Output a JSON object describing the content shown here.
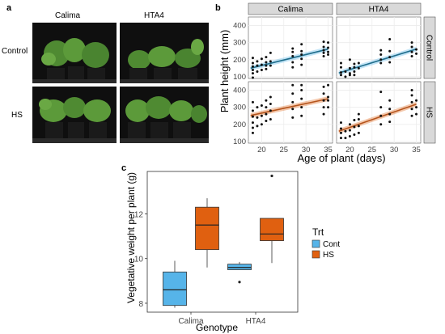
{
  "panel_a": {
    "letter": "a",
    "col_labels": [
      "Calima",
      "HTA4"
    ],
    "row_labels": [
      "Control",
      "HS"
    ]
  },
  "panel_b": {
    "letter": "b",
    "ylabel": "Plant height (mm)",
    "xlabel": "Age of plant (days)",
    "facet_cols": [
      "Calima",
      "HTA4"
    ],
    "facet_rows": [
      "Control",
      "HS"
    ]
  },
  "panel_c": {
    "letter": "c",
    "ylabel": "Vegetative weight per plant (g)",
    "xlabel": "Genotype",
    "legend_title": "Trt",
    "legend_items": [
      "Control",
      "HS"
    ]
  },
  "colors": {
    "control": "#56b4e9",
    "hs": "#e06010",
    "line_control": "#1f6e8c",
    "line_hs": "#b5541c",
    "strip": "#d9d9d9",
    "grid": "#ececec"
  },
  "chart_data": [
    {
      "type": "scatter",
      "title": "",
      "xlabel": "Age of plant (days)",
      "ylabel": "Plant height (mm)",
      "xlim": [
        17,
        36
      ],
      "ylim": [
        90,
        450
      ],
      "x_ticks": [
        20,
        25,
        30,
        35
      ],
      "y_ticks": [
        100,
        200,
        300,
        400
      ],
      "grid": true,
      "facets": [
        {
          "row": "Control",
          "col": "Calima",
          "fit": [
            [
              17.5,
              150
            ],
            [
              35,
              262
            ]
          ],
          "points": [
            [
              18,
              95
            ],
            [
              18,
              120
            ],
            [
              18,
              140
            ],
            [
              18,
              160
            ],
            [
              18,
              180
            ],
            [
              18,
              210
            ],
            [
              19,
              130
            ],
            [
              19,
              165
            ],
            [
              19,
              190
            ],
            [
              20,
              140
            ],
            [
              20,
              170
            ],
            [
              20,
              205
            ],
            [
              21,
              145
            ],
            [
              21,
              165
            ],
            [
              21,
              185
            ],
            [
              21,
              215
            ],
            [
              22,
              165
            ],
            [
              22,
              190
            ],
            [
              22,
              240
            ],
            [
              27,
              155
            ],
            [
              27,
              185
            ],
            [
              27,
              220
            ],
            [
              27,
              245
            ],
            [
              27,
              265
            ],
            [
              29,
              170
            ],
            [
              29,
              205
            ],
            [
              29,
              230
            ],
            [
              29,
              250
            ],
            [
              29,
              290
            ],
            [
              34,
              220
            ],
            [
              34,
              240
            ],
            [
              34,
              255
            ],
            [
              34,
              275
            ],
            [
              34,
              305
            ],
            [
              35,
              230
            ],
            [
              35,
              245
            ],
            [
              35,
              270
            ],
            [
              35,
              300
            ]
          ]
        },
        {
          "row": "Control",
          "col": "HTA4",
          "fit": [
            [
              17.5,
              122
            ],
            [
              35,
              262
            ]
          ],
          "points": [
            [
              18,
              110
            ],
            [
              18,
              125
            ],
            [
              18,
              155
            ],
            [
              18,
              180
            ],
            [
              19,
              100
            ],
            [
              19,
              130
            ],
            [
              20,
              110
            ],
            [
              20,
              120
            ],
            [
              20,
              150
            ],
            [
              20,
              200
            ],
            [
              21,
              110
            ],
            [
              21,
              130
            ],
            [
              21,
              155
            ],
            [
              21,
              175
            ],
            [
              22,
              150
            ],
            [
              22,
              180
            ],
            [
              27,
              180
            ],
            [
              27,
              200
            ],
            [
              27,
              230
            ],
            [
              27,
              255
            ],
            [
              29,
              185
            ],
            [
              29,
              215
            ],
            [
              29,
              250
            ],
            [
              29,
              320
            ],
            [
              34,
              220
            ],
            [
              34,
              245
            ],
            [
              34,
              275
            ],
            [
              34,
              300
            ],
            [
              35,
              235
            ],
            [
              35,
              260
            ]
          ]
        },
        {
          "row": "HS",
          "col": "Calima",
          "fit": [
            [
              17.5,
              252
            ],
            [
              35,
              350
            ]
          ],
          "points": [
            [
              18,
              150
            ],
            [
              18,
              180
            ],
            [
              18,
              210
            ],
            [
              18,
              245
            ],
            [
              18,
              280
            ],
            [
              18,
              330
            ],
            [
              19,
              190
            ],
            [
              19,
              240
            ],
            [
              19,
              300
            ],
            [
              20,
              200
            ],
            [
              20,
              250
            ],
            [
              20,
              310
            ],
            [
              21,
              220
            ],
            [
              21,
              260
            ],
            [
              21,
              300
            ],
            [
              21,
              340
            ],
            [
              22,
              230
            ],
            [
              22,
              280
            ],
            [
              22,
              320
            ],
            [
              22,
              360
            ],
            [
              27,
              240
            ],
            [
              27,
              290
            ],
            [
              27,
              330
            ],
            [
              27,
              380
            ],
            [
              27,
              430
            ],
            [
              29,
              250
            ],
            [
              29,
              300
            ],
            [
              29,
              350
            ],
            [
              29,
              400
            ],
            [
              29,
              430
            ],
            [
              34,
              260
            ],
            [
              34,
              300
            ],
            [
              34,
              340
            ],
            [
              34,
              380
            ],
            [
              34,
              420
            ],
            [
              35,
              300
            ],
            [
              35,
              340
            ],
            [
              35,
              360
            ],
            [
              35,
              430
            ]
          ]
        },
        {
          "row": "HS",
          "col": "HTA4",
          "fit": [
            [
              17.5,
              160
            ],
            [
              35,
              318
            ]
          ],
          "points": [
            [
              18,
              120
            ],
            [
              18,
              150
            ],
            [
              18,
              175
            ],
            [
              18,
              210
            ],
            [
              19,
              120
            ],
            [
              19,
              160
            ],
            [
              20,
              130
            ],
            [
              20,
              165
            ],
            [
              20,
              200
            ],
            [
              21,
              140
            ],
            [
              21,
              185
            ],
            [
              21,
              225
            ],
            [
              22,
              150
            ],
            [
              22,
              190
            ],
            [
              22,
              230
            ],
            [
              22,
              260
            ],
            [
              27,
              200
            ],
            [
              27,
              250
            ],
            [
              27,
              300
            ],
            [
              27,
              390
            ],
            [
              29,
              215
            ],
            [
              29,
              260
            ],
            [
              29,
              290
            ],
            [
              29,
              340
            ],
            [
              34,
              250
            ],
            [
              34,
              290
            ],
            [
              34,
              330
            ],
            [
              34,
              370
            ],
            [
              34,
              400
            ],
            [
              35,
              260
            ],
            [
              35,
              300
            ],
            [
              35,
              340
            ]
          ]
        }
      ]
    },
    {
      "type": "box",
      "title": "",
      "xlabel": "Genotype",
      "ylabel": "Vegetative weight per plant (g)",
      "categories": [
        "Calima",
        "HTA4"
      ],
      "ylim": [
        7.6,
        13.9
      ],
      "y_ticks": [
        8,
        10,
        12
      ],
      "legend": "right",
      "series": [
        {
          "name": "Control",
          "boxes": [
            {
              "min": 7.8,
              "q1": 7.9,
              "median": 8.6,
              "q3": 9.4,
              "max": 9.9,
              "outliers": []
            },
            {
              "min": 9.5,
              "q1": 9.5,
              "median": 9.6,
              "q3": 9.75,
              "max": 9.85,
              "outliers": [
                8.95
              ]
            }
          ]
        },
        {
          "name": "HS",
          "boxes": [
            {
              "min": 9.6,
              "q1": 10.4,
              "median": 11.5,
              "q3": 12.3,
              "max": 12.7,
              "outliers": []
            },
            {
              "min": 9.8,
              "q1": 10.8,
              "median": 11.1,
              "q3": 11.8,
              "max": 11.8,
              "outliers": [
                13.7
              ]
            }
          ]
        }
      ]
    }
  ]
}
